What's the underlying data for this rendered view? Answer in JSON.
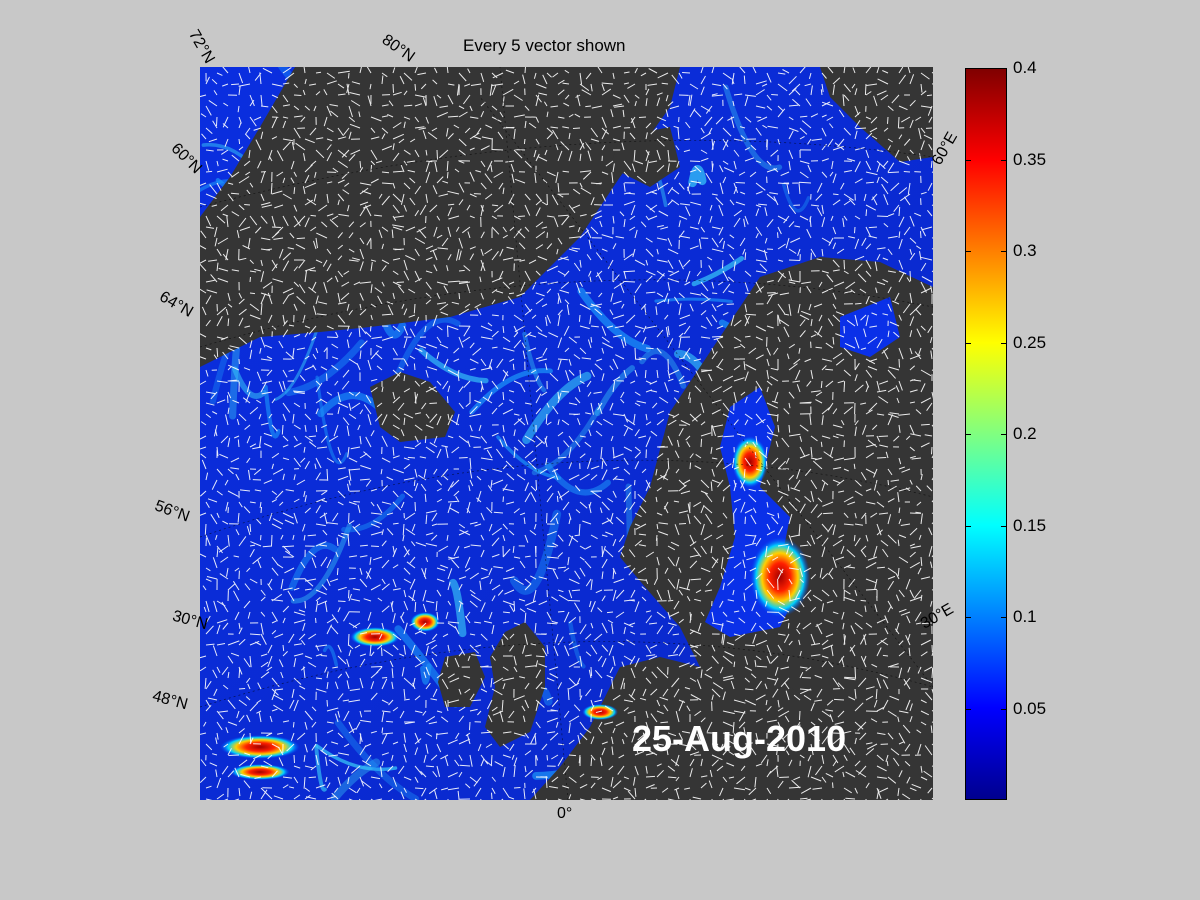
{
  "title": "Every 5 vector shown",
  "date_label": "25-Aug-2010",
  "lat_labels": [
    "72°N",
    "60°N",
    "64°N",
    "56°N",
    "48°N",
    "30°N"
  ],
  "lon_labels": [
    "80°N",
    "60°E",
    "30°E",
    "0°"
  ],
  "colorbar": {
    "min": 0,
    "max": 0.4,
    "ticks": [
      "0.4",
      "0.35",
      "0.3",
      "0.25",
      "0.2",
      "0.15",
      "0.1",
      "0.05"
    ],
    "colors": [
      "#00008f",
      "#0000ff",
      "#0080ff",
      "#00ffff",
      "#80ff80",
      "#ffff00",
      "#ff8000",
      "#ff0000",
      "#800000"
    ]
  },
  "colors": {
    "land": "#353535",
    "ocean": "#1030e0",
    "background": "#c8c8c8"
  }
}
